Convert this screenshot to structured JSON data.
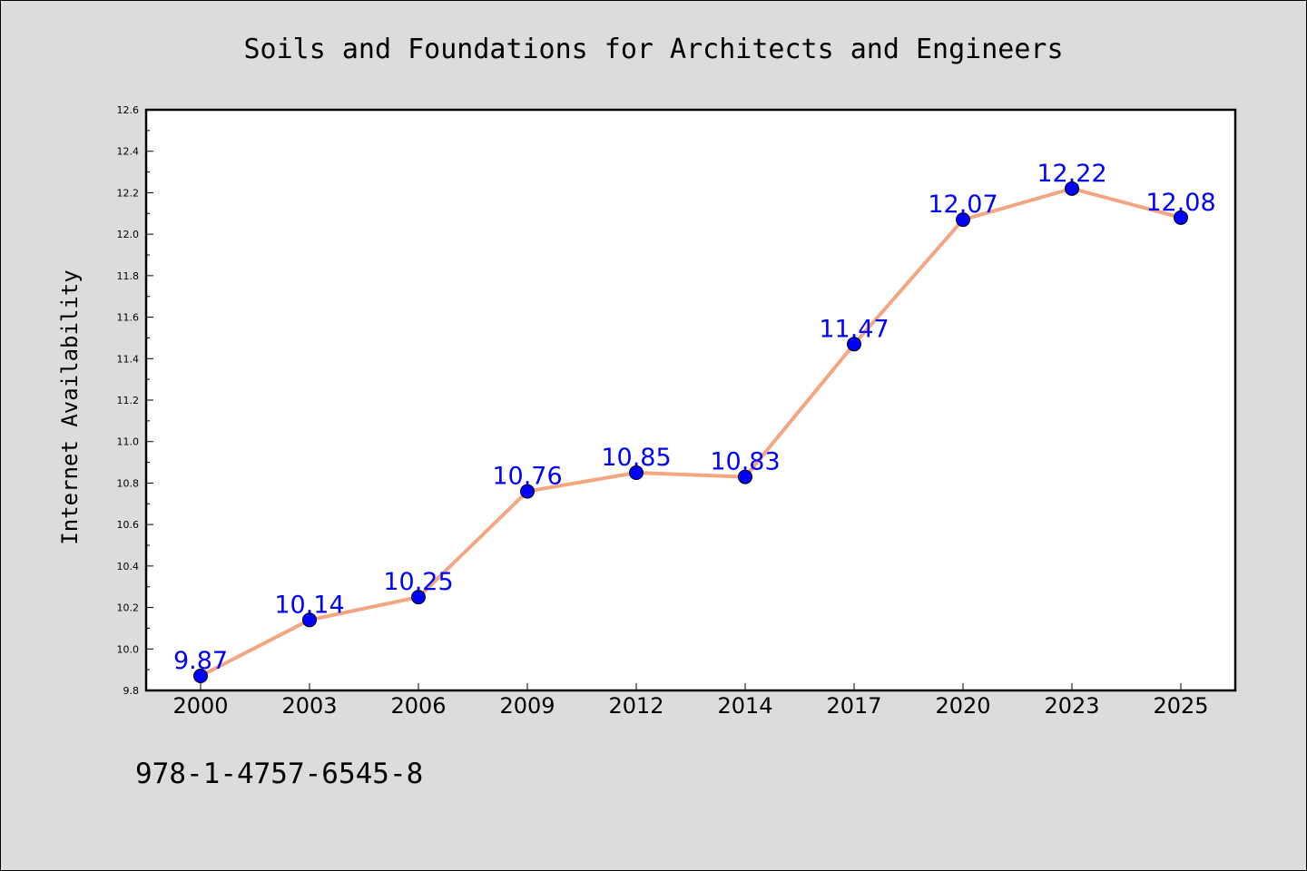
{
  "footer": {
    "isbn": "978-1-4757-6545-8"
  },
  "chart_data": {
    "type": "line",
    "title": "Soils and Foundations for Architects and Engineers",
    "xlabel": "",
    "ylabel": "Internet Availability",
    "categories": [
      "2000",
      "2003",
      "2006",
      "2009",
      "2012",
      "2014",
      "2017",
      "2020",
      "2023",
      "2025"
    ],
    "series": [
      {
        "values": [
          9.87,
          10.14,
          10.25,
          10.76,
          10.85,
          10.83,
          11.47,
          12.07,
          12.22,
          12.08
        ],
        "line_color": "#f4a582",
        "marker_color": "#0000ff",
        "label_color": "#0000ff"
      }
    ],
    "ylim": [
      9.8,
      12.6
    ],
    "yticks": [
      "9.8",
      "10.0",
      "10.2",
      "10.4",
      "10.6",
      "10.8",
      "11.0",
      "11.2",
      "11.4",
      "11.6",
      "11.8",
      "12.0",
      "12.2",
      "12.4",
      "12.6"
    ],
    "grid": false,
    "legend": "none",
    "data_labels": true
  }
}
